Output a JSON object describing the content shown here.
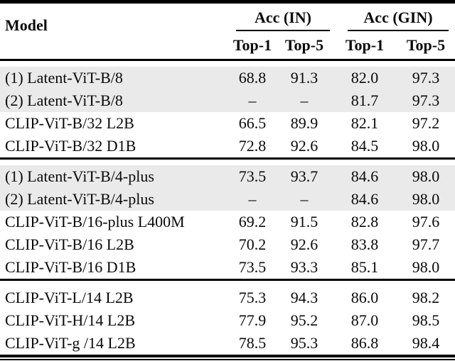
{
  "header": {
    "model_label": "Model",
    "groups": [
      {
        "id": "in",
        "label": "Acc (IN)",
        "subcolumns": [
          "Top-1",
          "Top-5"
        ]
      },
      {
        "id": "gin",
        "label": "Acc (GIN)",
        "subcolumns": [
          "Top-1",
          "Top-5"
        ]
      }
    ]
  },
  "sections": [
    {
      "rows": [
        {
          "model": "(1) Latent-ViT-B/8",
          "values": [
            "68.8",
            "91.3",
            "82.0",
            "97.3"
          ],
          "highlight": true
        },
        {
          "model": "(2) Latent-ViT-B/8",
          "values": [
            "–",
            "–",
            "81.7",
            "97.3"
          ],
          "highlight": true
        },
        {
          "model": "CLIP-ViT-B/32 L2B",
          "values": [
            "66.5",
            "89.9",
            "82.1",
            "97.2"
          ],
          "highlight": false
        },
        {
          "model": "CLIP-ViT-B/32 D1B",
          "values": [
            "72.8",
            "92.6",
            "84.5",
            "98.0"
          ],
          "highlight": false
        }
      ]
    },
    {
      "rows": [
        {
          "model": "(1) Latent-ViT-B/4-plus",
          "values": [
            "73.5",
            "93.7",
            "84.6",
            "98.0"
          ],
          "highlight": true
        },
        {
          "model": "(2) Latent-ViT-B/4-plus",
          "values": [
            "–",
            "–",
            "84.6",
            "98.0"
          ],
          "highlight": true
        },
        {
          "model": "CLIP-ViT-B/16-plus L400M",
          "values": [
            "69.2",
            "91.5",
            "82.8",
            "97.6"
          ],
          "highlight": false
        },
        {
          "model": "CLIP-ViT-B/16 L2B",
          "values": [
            "70.2",
            "92.6",
            "83.8",
            "97.7"
          ],
          "highlight": false
        },
        {
          "model": "CLIP-ViT-B/16 D1B",
          "values": [
            "73.5",
            "93.3",
            "85.1",
            "98.0"
          ],
          "highlight": false
        }
      ]
    },
    {
      "rows": [
        {
          "model": "CLIP-ViT-L/14 L2B",
          "values": [
            "75.3",
            "94.3",
            "86.0",
            "98.2"
          ],
          "highlight": false
        },
        {
          "model": "CLIP-ViT-H/14 L2B",
          "values": [
            "77.9",
            "95.2",
            "87.0",
            "98.5"
          ],
          "highlight": false
        },
        {
          "model": "CLIP-ViT-g /14 L2B",
          "values": [
            "78.5",
            "95.3",
            "86.8",
            "98.4"
          ],
          "highlight": false
        }
      ]
    }
  ],
  "colors": {
    "rule": "#000000",
    "row_highlight": "#eaeaea",
    "text": "#0a0a0a",
    "background": "#ffffff"
  }
}
